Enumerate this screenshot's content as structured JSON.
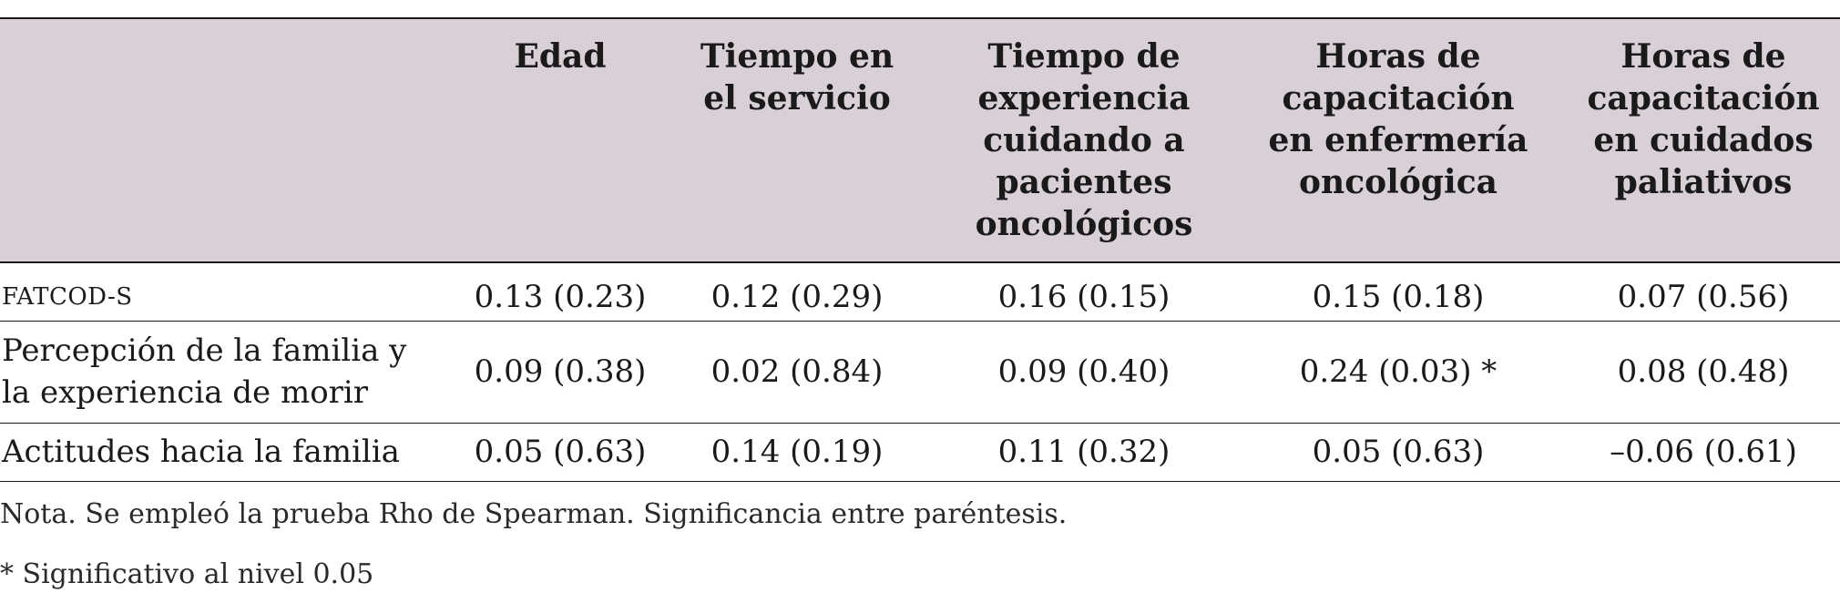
{
  "table": {
    "headers": [
      "",
      "Edad",
      "Tiempo en el servicio",
      "Tiempo de experiencia cuidando a pacientes oncológicos",
      "Horas de capacitación en enfermería oncológica",
      "Horas de capacitación en cuidados paliativos"
    ],
    "header_lines": {
      "h1": [
        "Edad"
      ],
      "h2": [
        "Tiempo en",
        "el servicio"
      ],
      "h3": [
        "Tiempo de",
        "experiencia",
        "cuidando a",
        "pacientes",
        "oncológicos"
      ],
      "h4": [
        "Horas de",
        "capacitación",
        "en enfermería",
        "oncológica"
      ],
      "h5": [
        "Horas de",
        "capacitación",
        "en cuidados",
        "paliativos"
      ]
    },
    "rows": [
      {
        "label": "FATCOD-S",
        "label_lines": [
          "FATCOD-S"
        ],
        "cells": [
          "0.13 (0.23)",
          "0.12 (0.29)",
          "0.16 (0.15)",
          "0.15 (0.18)",
          "0.07 (0.56)"
        ]
      },
      {
        "label": "Percepción de la familia y la experiencia de morir",
        "label_lines": [
          "Percepción de la familia y",
          "la experiencia de morir"
        ],
        "cells": [
          "0.09 (0.38)",
          "0.02 (0.84)",
          "0.09 (0.40)",
          "0.24 (0.03) *",
          "0.08 (0.48)"
        ]
      },
      {
        "label": "Actitudes hacia la familia",
        "label_lines": [
          "Actitudes hacia la familia"
        ],
        "cells": [
          "0.05 (0.63)",
          "0.14 (0.19)",
          "0.11 (0.32)",
          "0.05 (0.63)",
          "–0.06 (0.61)"
        ]
      }
    ]
  },
  "notes": {
    "nota": "Nota. Se empleó la prueba Rho de Spearman. Significancia entre paréntesis.",
    "significance": "* Significativo al nivel 0.05"
  },
  "colors": {
    "header_background": "#d9cfd6",
    "rule": "#1a1a1a",
    "text": "#1a1a1a"
  }
}
